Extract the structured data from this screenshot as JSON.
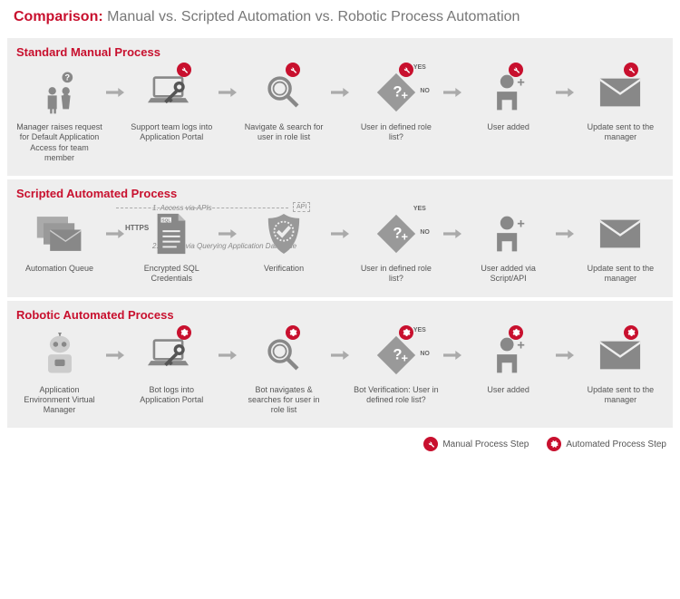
{
  "colors": {
    "accent": "#c8102e",
    "bg_section": "#eeeeee",
    "icon": "#888888",
    "text": "#555555"
  },
  "header": {
    "bold": "Comparison:",
    "rest": " Manual vs. Scripted Automation vs. Robotic Process Automation"
  },
  "legend": {
    "manual": "Manual Process Step",
    "auto": "Automated Process Step"
  },
  "sections": [
    {
      "title": "Standard Manual Process",
      "steps": [
        {
          "label": "Manager raises request for Default Application Access for team member",
          "icon": "people-question",
          "badge": ""
        },
        {
          "label": "Support team logs into Application Portal",
          "icon": "laptop-key",
          "badge": "manual"
        },
        {
          "label": "Navigate & search for user in role list",
          "icon": "magnify",
          "badge": "manual"
        },
        {
          "label": "User in defined role list?",
          "icon": "diamond-question",
          "badge": "manual",
          "decision": true,
          "yes": "YES",
          "no": "NO"
        },
        {
          "label": "User added",
          "icon": "user-plus",
          "badge": "manual"
        },
        {
          "label": "Update sent to the manager",
          "icon": "envelope",
          "badge": "manual"
        }
      ]
    },
    {
      "title": "Scripted Automated Process",
      "annotations": {
        "api_access": "1. Access via APIs",
        "db_access": "2. Access via Querying Application Database",
        "https": "HTTPS",
        "api_box": "API"
      },
      "steps": [
        {
          "label": "Automation Queue",
          "icon": "envelopes",
          "badge": ""
        },
        {
          "label": "Encrypted SQL Credentials",
          "icon": "sql-doc",
          "badge": ""
        },
        {
          "label": "Verification",
          "icon": "shield-check",
          "badge": ""
        },
        {
          "label": "User in defined role list?",
          "icon": "diamond-question",
          "badge": "",
          "decision": true,
          "yes": "YES",
          "no": "NO"
        },
        {
          "label": "User added via Script/API",
          "icon": "user-plus",
          "badge": ""
        },
        {
          "label": "Update sent to the manager",
          "icon": "envelope",
          "badge": ""
        }
      ]
    },
    {
      "title": "Robotic Automated Process",
      "steps": [
        {
          "label": "Application Environment Virtual Manager",
          "icon": "robot",
          "badge": ""
        },
        {
          "label": "Bot logs into Application Portal",
          "icon": "laptop-key",
          "badge": "auto"
        },
        {
          "label": "Bot navigates & searches for user in role list",
          "icon": "magnify",
          "badge": "auto"
        },
        {
          "label": "Bot Verification: User in defined role list?",
          "icon": "diamond-question",
          "badge": "auto",
          "decision": true,
          "yes": "YES",
          "no": "NO"
        },
        {
          "label": "User added",
          "icon": "user-plus",
          "badge": "auto"
        },
        {
          "label": "Update sent to the manager",
          "icon": "envelope",
          "badge": "auto"
        }
      ]
    }
  ]
}
